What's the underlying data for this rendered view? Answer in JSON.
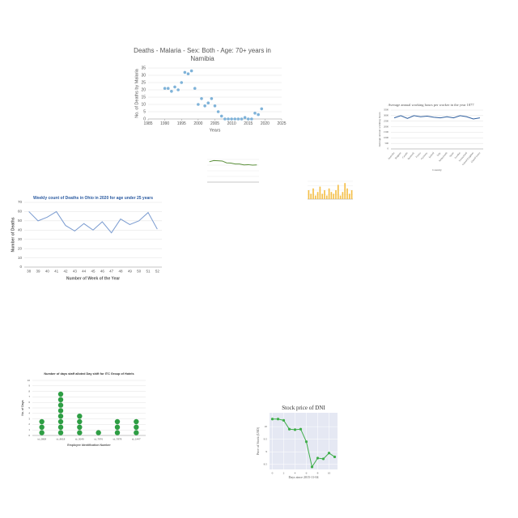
{
  "chart_data": [
    {
      "type": "scatter",
      "title": "Deaths - Malaria - Sex: Both - Age: 70+ years in Namibia",
      "x_label": "Years",
      "y_label": "No. of Deaths by Malaria",
      "x": [
        1990,
        1991,
        1992,
        1993,
        1994,
        1995,
        1996,
        1997,
        1998,
        1999,
        2000,
        2001,
        2002,
        2003,
        2004,
        2005,
        2006,
        2007,
        2008,
        2009,
        2010,
        2011,
        2012,
        2013,
        2014,
        2015,
        2016,
        2017,
        2018,
        2019
      ],
      "values": [
        21,
        21,
        19,
        22,
        20,
        25,
        32,
        31,
        33,
        21,
        10,
        14,
        9,
        11,
        14,
        9,
        5,
        2,
        0,
        0,
        0,
        0,
        0,
        0,
        1,
        0,
        0,
        4,
        3,
        7
      ],
      "color": "#7fb3d9",
      "xlim": [
        1985,
        2025
      ],
      "xticks": [
        1985,
        1990,
        1995,
        2000,
        2005,
        2010,
        2015,
        2020,
        2025
      ],
      "ylim": [
        0,
        35
      ],
      "yticks": [
        0,
        5,
        10,
        15,
        20,
        25,
        30,
        35
      ],
      "grid": true
    },
    {
      "type": "line",
      "title": "Average annual working hours per worker in the year 1877",
      "x_label": "Country",
      "y_label": "Average annual working hours",
      "categories": [
        "Australia",
        "Belgium",
        "Canada",
        "Denmark",
        "France",
        "Germany",
        "Ireland",
        "Italy",
        "Netherlands",
        "Spain",
        "Sweden",
        "Switzerland",
        "United Kingdom",
        "United States"
      ],
      "values": [
        2800,
        3000,
        2750,
        3000,
        2900,
        2950,
        2850,
        2800,
        2900,
        2800,
        3000,
        2900,
        2700,
        2800
      ],
      "color": "#2f5f9e",
      "ylim": [
        0,
        3500
      ],
      "yticks": [
        0,
        500,
        1000,
        1500,
        2000,
        2500,
        3000,
        3500
      ],
      "grid": true
    },
    {
      "type": "line",
      "values": [
        90,
        95,
        94,
        93,
        85,
        84,
        80,
        80,
        76,
        77,
        75,
        76
      ],
      "color": "#5a8f3a",
      "ylim": [
        0,
        100
      ],
      "grid": true
    },
    {
      "type": "bar",
      "values": [
        5,
        3,
        6,
        2,
        4,
        7,
        3,
        5,
        2,
        6,
        4,
        3,
        5,
        8,
        2,
        4,
        9,
        6,
        3,
        5
      ],
      "color": "#f5c04a",
      "ylim": [
        0,
        10
      ],
      "grid": true
    },
    {
      "type": "line",
      "title": "Weekly count of Deaths in Ohio in 2020 for age under 25 years",
      "x_label": "Number of Week of the Year",
      "y_label": "Number of Deaths",
      "categories": [
        "38",
        "39",
        "40",
        "41",
        "42",
        "43",
        "44",
        "45",
        "46",
        "47",
        "48",
        "49",
        "50",
        "51",
        "52"
      ],
      "values": [
        60,
        50,
        54,
        60,
        45,
        39,
        47,
        40,
        49,
        37,
        52,
        46,
        50,
        59,
        41
      ],
      "color": "#7a9bd0",
      "ylim": [
        0,
        70
      ],
      "yticks": [
        0,
        10,
        20,
        30,
        40,
        50,
        60,
        70
      ],
      "grid": true
    },
    {
      "type": "dot",
      "title": "Number of days staff alloted Day shift for ITC Group of Hotels",
      "x_label": "Employee Identification Number",
      "y_label": "No. of Days",
      "categories": [
        "id_2808",
        "id_8618",
        "id_3049",
        "id_7976",
        "id_7878",
        "id_1447"
      ],
      "values": [
        3,
        8,
        4,
        1,
        3,
        3
      ],
      "color": "#2e9e44",
      "ylim": [
        0,
        10
      ],
      "yticks": [
        0,
        1,
        2,
        3,
        4,
        5,
        6,
        7,
        8,
        9,
        10
      ],
      "grid": true
    },
    {
      "type": "line",
      "title": "Stock price of DNI",
      "x_label": "Days since 2015-11-04",
      "y_label": "Price of Stock (USD)",
      "x": [
        0,
        1,
        2,
        3,
        4,
        5,
        6,
        7,
        8,
        9,
        10,
        11
      ],
      "values": [
        10.3,
        10.3,
        10.25,
        9.9,
        9.88,
        9.9,
        9.4,
        8.4,
        8.75,
        8.72,
        8.95,
        8.8
      ],
      "color": "#3fae4a",
      "xlim": [
        -0.5,
        11.5
      ],
      "xticks": [
        0,
        2,
        4,
        6,
        8,
        10
      ],
      "ylim": [
        8.3,
        10.55
      ],
      "yticks": [
        8.5,
        9,
        9.5,
        10
      ],
      "grid": true,
      "markers": true,
      "plot_background": "#e5e8f3"
    }
  ]
}
